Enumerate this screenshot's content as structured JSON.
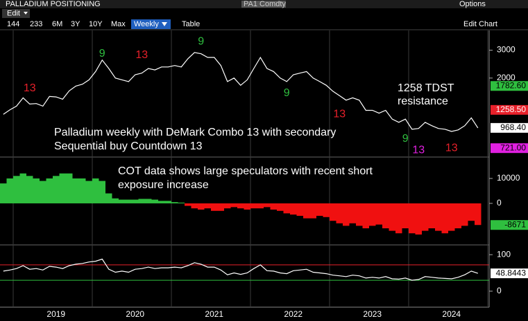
{
  "toolbar": {
    "title": "PALLADIUM POSITIONING",
    "ticker": "PA1 Comdty",
    "options": "Options",
    "menu": "Edit",
    "ranges": [
      "144",
      "233",
      "6M",
      "3Y",
      "10Y",
      "Max"
    ],
    "period": "Weekly",
    "table": "Table",
    "edit_chart": "Edit Chart"
  },
  "chart_data": [
    {
      "type": "line",
      "color": "#ffffff",
      "log_scale": true,
      "ylim": [
        640,
        4000
      ],
      "yticks": [
        2000,
        3000
      ],
      "values": [
        1180,
        1260,
        1330,
        1500,
        1370,
        1380,
        1330,
        1530,
        1520,
        1470,
        1660,
        1780,
        1830,
        1950,
        2200,
        2600,
        2300,
        2000,
        1950,
        1900,
        2100,
        2150,
        2300,
        2250,
        2350,
        2350,
        2400,
        2350,
        2650,
        2900,
        2850,
        2700,
        2700,
        2400,
        1900,
        2000,
        1800,
        1950,
        2300,
        2700,
        2300,
        2200,
        2000,
        1900,
        2100,
        2150,
        2200,
        2000,
        1900,
        1800,
        1650,
        1550,
        1450,
        1500,
        1450,
        1250,
        1250,
        1200,
        1250,
        1100,
        1050,
        1100,
        950,
        960,
        1050,
        1000,
        960,
        950,
        920,
        940,
        1000,
        1120,
        968.4
      ],
      "badges": [
        {
          "value": 1782.6,
          "label": "1782.60",
          "color": "#2fbf3f",
          "text_color": "#000000"
        },
        {
          "value": 1258.5,
          "label": "1258.50",
          "color": "#e8202a",
          "text_color": "#ffffff"
        },
        {
          "value": 968.4,
          "label": "968.40",
          "color": "#ffffff",
          "text_color": "#000000"
        },
        {
          "value": 721,
          "label": "721.00",
          "color": "#e020e0",
          "text_color": "#000000"
        }
      ],
      "signals": [
        {
          "label": "13",
          "index": 4,
          "value": 1718,
          "color": "#e8202a"
        },
        {
          "label": "9",
          "index": 15,
          "value": 2850,
          "color": "#2fbf3f"
        },
        {
          "label": "13",
          "index": 21,
          "value": 2790,
          "color": "#e8202a"
        },
        {
          "label": "9",
          "index": 30,
          "value": 3400,
          "color": "#2fbf3f"
        },
        {
          "label": "9",
          "index": 43,
          "value": 1600,
          "color": "#2fbf3f"
        },
        {
          "label": "13",
          "index": 51,
          "value": 1180,
          "color": "#e8202a"
        },
        {
          "label": "9",
          "index": 61,
          "value": 827,
          "color": "#2fbf3f"
        },
        {
          "label": "13",
          "index": 63,
          "value": 697,
          "color": "#e020e0"
        },
        {
          "label": "13",
          "index": 68,
          "value": 720,
          "color": "#e8202a"
        }
      ],
      "annotations": [
        {
          "lines": [
            "Palladium weekly with DeMark Combo 13 with secondary",
            "Sequential buy Countdown 13"
          ]
        },
        {
          "lines": [
            "1258 TDST",
            "resistance"
          ]
        }
      ]
    },
    {
      "type": "bar",
      "color": "#2fbf3f",
      "negative_color": "#f01010",
      "ylim": [
        -16100,
        18300
      ],
      "yticks": [
        0,
        10000
      ],
      "values": [
        8000,
        10000,
        11000,
        12000,
        11000,
        10000,
        9000,
        10000,
        11000,
        12000,
        12000,
        10000,
        10000,
        9000,
        10000,
        9000,
        4000,
        2000,
        1500,
        1500,
        1500,
        1800,
        1800,
        1500,
        1000,
        1000,
        500,
        300,
        -1000,
        -2000,
        -2500,
        -2000,
        -3000,
        -3000,
        -2000,
        -1500,
        -2000,
        -2500,
        -2000,
        -2000,
        -1500,
        -2500,
        -3000,
        -4000,
        -4500,
        -5000,
        -6000,
        -6000,
        -5000,
        -5500,
        -7000,
        -8000,
        -9000,
        -8000,
        -9000,
        -10000,
        -9000,
        -8500,
        -10000,
        -11000,
        -12000,
        -10000,
        -12000,
        -12500,
        -11000,
        -10000,
        -11000,
        -12000,
        -11000,
        -10000,
        -9000,
        -7000,
        -8671
      ],
      "badges": [
        {
          "value": -8671,
          "label": "-8671",
          "color": "#2fbf3f",
          "text_color": "#000000"
        }
      ],
      "annotations": [
        {
          "lines": [
            "COT data shows large speculators with recent short",
            "exposure increase"
          ]
        }
      ]
    },
    {
      "type": "line",
      "color": "#ffffff",
      "ylim": [
        -40,
        123
      ],
      "yticks": [
        0,
        100
      ],
      "values": [
        55,
        58,
        62,
        70,
        60,
        62,
        58,
        68,
        66,
        62,
        70,
        74,
        76,
        80,
        82,
        88,
        60,
        52,
        55,
        52,
        60,
        62,
        66,
        62,
        64,
        64,
        66,
        64,
        70,
        78,
        74,
        66,
        66,
        58,
        45,
        50,
        46,
        50,
        62,
        72,
        56,
        55,
        50,
        48,
        56,
        58,
        60,
        52,
        50,
        48,
        44,
        42,
        40,
        44,
        42,
        36,
        38,
        36,
        40,
        34,
        33,
        36,
        30,
        32,
        40,
        38,
        36,
        35,
        34,
        38,
        45,
        55,
        48.8443
      ],
      "levels": [
        {
          "value": 72,
          "color": "#e8202a"
        },
        {
          "value": 30,
          "color": "#2fbf3f"
        }
      ],
      "badges": [
        {
          "value": 48.8443,
          "label": "48.8443",
          "color": "#ffffff",
          "text_color": "#000000"
        }
      ],
      "categories": [
        null,
        null,
        null,
        null,
        null,
        null,
        null,
        null,
        "2019",
        null,
        null,
        null,
        null,
        null,
        null,
        null,
        null,
        null,
        null,
        null,
        "2020",
        null,
        null,
        null,
        null,
        null,
        null,
        null,
        null,
        null,
        null,
        null,
        "2021",
        null,
        null,
        null,
        null,
        null,
        null,
        null,
        null,
        null,
        null,
        null,
        "2022",
        null,
        null,
        null,
        null,
        null,
        null,
        null,
        null,
        null,
        null,
        null,
        "2023",
        null,
        null,
        null,
        null,
        null,
        null,
        null,
        null,
        null,
        null,
        null,
        "2024",
        null,
        null,
        null,
        null
      ]
    }
  ]
}
